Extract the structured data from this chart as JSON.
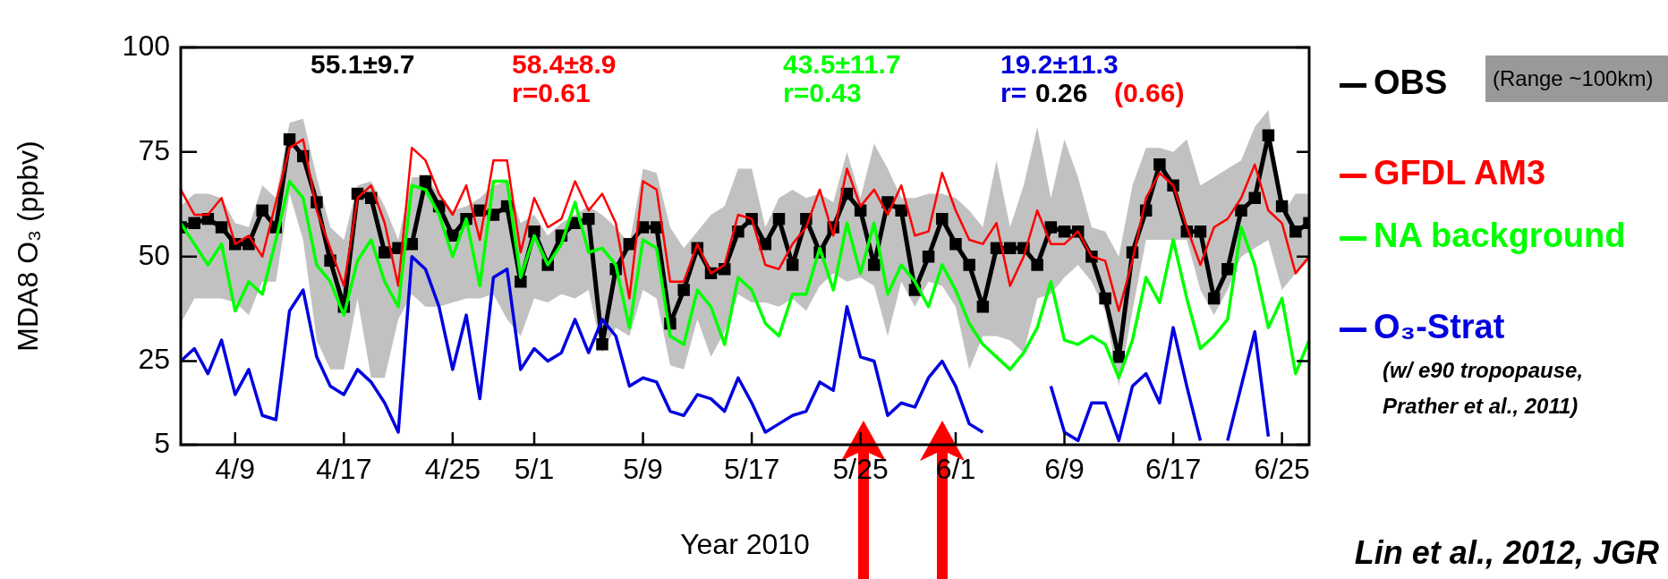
{
  "chart_data": {
    "type": "line",
    "xlabel": "Year 2010",
    "ylabel": "MDA8 O₃ (ppbv)",
    "x": [
      "2010-04-05",
      "2010-04-06",
      "2010-04-07",
      "2010-04-08",
      "2010-04-09",
      "2010-04-10",
      "2010-04-11",
      "2010-04-12",
      "2010-04-13",
      "2010-04-14",
      "2010-04-15",
      "2010-04-16",
      "2010-04-17",
      "2010-04-18",
      "2010-04-19",
      "2010-04-20",
      "2010-04-21",
      "2010-04-22",
      "2010-04-23",
      "2010-04-24",
      "2010-04-25",
      "2010-04-26",
      "2010-04-27",
      "2010-04-28",
      "2010-04-29",
      "2010-04-30",
      "2010-05-01",
      "2010-05-02",
      "2010-05-03",
      "2010-05-04",
      "2010-05-05",
      "2010-05-06",
      "2010-05-07",
      "2010-05-08",
      "2010-05-09",
      "2010-05-10",
      "2010-05-11",
      "2010-05-12",
      "2010-05-13",
      "2010-05-14",
      "2010-05-15",
      "2010-05-16",
      "2010-05-17",
      "2010-05-18",
      "2010-05-19",
      "2010-05-20",
      "2010-05-21",
      "2010-05-22",
      "2010-05-23",
      "2010-05-24",
      "2010-05-25",
      "2010-05-26",
      "2010-05-27",
      "2010-05-28",
      "2010-05-29",
      "2010-05-30",
      "2010-05-31",
      "2010-06-01",
      "2010-06-02",
      "2010-06-03",
      "2010-06-04",
      "2010-06-05",
      "2010-06-06",
      "2010-06-07",
      "2010-06-08",
      "2010-06-09",
      "2010-06-10",
      "2010-06-11",
      "2010-06-12",
      "2010-06-13",
      "2010-06-14",
      "2010-06-15",
      "2010-06-16",
      "2010-06-17",
      "2010-06-18",
      "2010-06-19",
      "2010-06-20",
      "2010-06-21",
      "2010-06-22",
      "2010-06-23",
      "2010-06-24",
      "2010-06-25",
      "2010-06-26",
      "2010-06-27"
    ],
    "series": [
      {
        "name": "OBS",
        "color": "#000000",
        "marker": "square",
        "values": [
          57,
          58,
          59,
          57,
          53,
          53,
          61,
          57,
          78,
          74,
          63,
          49,
          38,
          65,
          64,
          51,
          52,
          53,
          68,
          62,
          55,
          59,
          61,
          60,
          62,
          44,
          56,
          48,
          55,
          58,
          59,
          29,
          47,
          53,
          57,
          57,
          34,
          42,
          52,
          46,
          47,
          56,
          59,
          53,
          59,
          48,
          59,
          51,
          57,
          65,
          61,
          48,
          63,
          61,
          42,
          50,
          59,
          53,
          48,
          38,
          52,
          52,
          52,
          48,
          57,
          56,
          56,
          50,
          40,
          26,
          51,
          61,
          72,
          67,
          56,
          56,
          40,
          47,
          61,
          64,
          79,
          62,
          56,
          58
        ],
        "lower": [
          34,
          40,
          40,
          40,
          39,
          36,
          44,
          44,
          65,
          54,
          30,
          23,
          23,
          40,
          21,
          21,
          35,
          41,
          38,
          38,
          39,
          40,
          40,
          41,
          35,
          31,
          40,
          39,
          41,
          40,
          42,
          27,
          33,
          31,
          42,
          40,
          24,
          23,
          35,
          26,
          32,
          41,
          39,
          39,
          38,
          40,
          37,
          43,
          46,
          44,
          45,
          43,
          31,
          44,
          38,
          44,
          43,
          38,
          23,
          31,
          31,
          30,
          27,
          40,
          41,
          45,
          48,
          44,
          37,
          19,
          37,
          54,
          54,
          54,
          54,
          42,
          36,
          42,
          50,
          52,
          54,
          42,
          46,
          49
        ],
        "upper": [
          62,
          65,
          65,
          64,
          58,
          57,
          67,
          64,
          82,
          83,
          69,
          57,
          54,
          67,
          68,
          62,
          54,
          69,
          69,
          65,
          61,
          62,
          64,
          67,
          68,
          58,
          60,
          55,
          58,
          60,
          62,
          60,
          57,
          53,
          71,
          70,
          57,
          52,
          56,
          60,
          62,
          71,
          71,
          57,
          64,
          66,
          64,
          65,
          63,
          75,
          64,
          77,
          71,
          64,
          64,
          65,
          65,
          64,
          61,
          57,
          73,
          57,
          67,
          81,
          64,
          78,
          69,
          57,
          56,
          50,
          67,
          76,
          76,
          75,
          78,
          67,
          69,
          71,
          73,
          81,
          85,
          60,
          65,
          65
        ]
      },
      {
        "name": "GFDL AM3",
        "color": "#ff0000",
        "values": [
          66,
          60,
          60,
          64,
          53,
          55,
          50,
          63,
          76,
          78,
          61,
          52,
          43,
          64,
          67,
          58,
          43,
          76,
          73,
          65,
          60,
          67,
          54,
          73,
          73,
          51,
          64,
          57,
          59,
          68,
          61,
          65,
          58,
          40,
          68,
          66,
          44,
          44,
          53,
          46,
          48,
          60,
          59,
          48,
          47,
          53,
          57,
          66,
          55,
          71,
          62,
          66,
          60,
          67,
          55,
          56,
          70,
          61,
          54,
          53,
          58,
          43,
          50,
          61,
          53,
          53,
          56,
          50,
          49,
          37,
          49,
          64,
          70,
          67,
          57,
          48,
          57,
          59,
          64,
          72,
          61,
          58,
          46,
          50
        ]
      },
      {
        "name": "NA background",
        "color": "#00ff00",
        "values": [
          58,
          53,
          48,
          53,
          37,
          44,
          41,
          54,
          68,
          64,
          48,
          44,
          36,
          49,
          54,
          44,
          38,
          67,
          66,
          60,
          50,
          59,
          43,
          68,
          68,
          45,
          55,
          48,
          53,
          63,
          51,
          52,
          48,
          33,
          54,
          52,
          31,
          29,
          42,
          38,
          29,
          45,
          42,
          34,
          31,
          41,
          41,
          52,
          42,
          58,
          46,
          58,
          41,
          48,
          44,
          38,
          48,
          42,
          34,
          29,
          26,
          23,
          27,
          33,
          44,
          30,
          29,
          31,
          29,
          21,
          30,
          45,
          39,
          54,
          40,
          28,
          31,
          35,
          57,
          48,
          33,
          40,
          22,
          30
        ]
      },
      {
        "name": "O₃-Strat",
        "color": "#0000e0",
        "values": [
          25,
          28,
          22,
          30,
          17,
          23,
          12,
          11,
          37,
          42,
          26,
          19,
          17,
          23,
          20,
          15,
          8,
          50,
          47,
          38,
          23,
          36,
          16,
          45,
          47,
          23,
          28,
          25,
          27,
          35,
          27,
          35,
          31,
          19,
          21,
          20,
          13,
          12,
          17,
          16,
          13,
          21,
          15,
          8,
          10,
          12,
          13,
          20,
          18,
          38,
          26,
          25,
          12,
          15,
          14,
          21,
          25,
          19,
          10,
          8,
          null,
          null,
          null,
          null,
          19,
          8,
          6,
          15,
          15,
          6,
          19,
          22,
          15,
          33,
          19,
          6,
          null,
          6,
          19,
          32,
          7,
          null,
          null,
          null
        ]
      }
    ],
    "xlim": [
      "2010-04-05",
      "2010-06-27"
    ],
    "xticks": [
      {
        "value": "2010-04-09",
        "label": "4/9"
      },
      {
        "value": "2010-04-17",
        "label": "4/17"
      },
      {
        "value": "2010-04-25",
        "label": "4/25"
      },
      {
        "value": "2010-05-01",
        "label": "5/1"
      },
      {
        "value": "2010-05-09",
        "label": "5/9"
      },
      {
        "value": "2010-05-17",
        "label": "5/17"
      },
      {
        "value": "2010-05-25",
        "label": "5/25"
      },
      {
        "value": "2010-06-01",
        "label": "6/1"
      },
      {
        "value": "2010-06-09",
        "label": "6/9"
      },
      {
        "value": "2010-06-17",
        "label": "6/17"
      },
      {
        "value": "2010-06-25",
        "label": "6/25"
      }
    ],
    "ylim": [
      5,
      100
    ],
    "yticks": [
      5,
      25,
      50,
      75,
      100
    ],
    "legend": "right",
    "annotations": [
      "55.1±9.7",
      "58.4±8.9",
      "r=0.61",
      "43.5±11.7",
      "r=0.43",
      "19.2±11.3",
      "r=",
      "0.26",
      "(0.66)",
      "(Range ~100km)",
      "(w/ e90 tropopause,",
      "Prather et al., 2011)",
      "Lin et al., 2012, JGR"
    ]
  }
}
